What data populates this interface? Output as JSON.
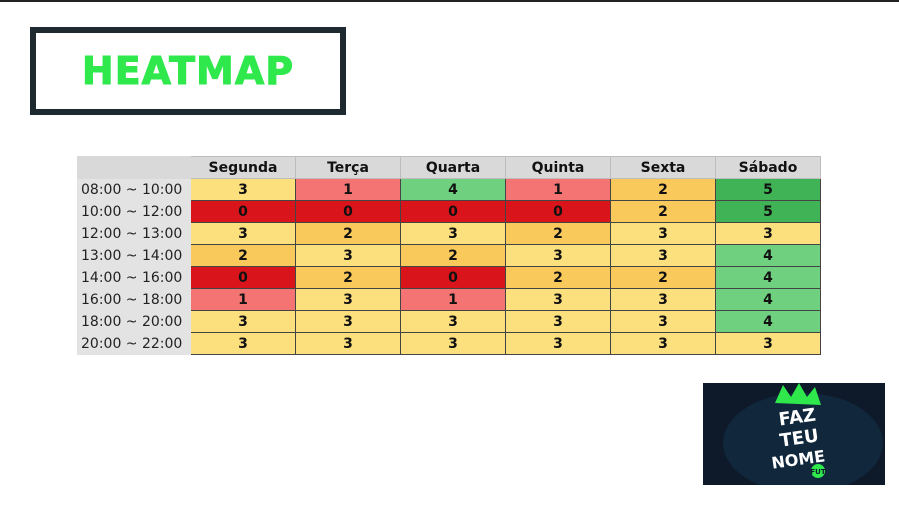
{
  "title": "HEATMAP",
  "heatmap": {
    "columns": [
      "Segunda",
      "Terça",
      "Quarta",
      "Quinta",
      "Sexta",
      "Sábado"
    ],
    "rows": [
      {
        "time": "08:00 ~ 10:00",
        "values": [
          "3",
          "1",
          "4",
          "1",
          "2",
          "5"
        ]
      },
      {
        "time": "10:00 ~ 12:00",
        "values": [
          "0",
          "0",
          "0",
          "0",
          "2",
          "5"
        ]
      },
      {
        "time": "12:00 ~ 13:00",
        "values": [
          "3",
          "2",
          "3",
          "2",
          "3",
          "3"
        ]
      },
      {
        "time": "13:00 ~ 14:00",
        "values": [
          "2",
          "3",
          "2",
          "3",
          "3",
          "4"
        ]
      },
      {
        "time": "14:00 ~ 16:00",
        "values": [
          "0",
          "2",
          "0",
          "2",
          "2",
          "4"
        ]
      },
      {
        "time": "16:00 ~ 18:00",
        "values": [
          "1",
          "3",
          "1",
          "3",
          "3",
          "4"
        ]
      },
      {
        "time": "18:00 ~ 20:00",
        "values": [
          "3",
          "3",
          "3",
          "3",
          "3",
          "4"
        ]
      },
      {
        "time": "20:00 ~ 22:00",
        "values": [
          "3",
          "3",
          "3",
          "3",
          "3",
          "3"
        ]
      }
    ],
    "colors": {
      "0": "#d9141a",
      "1": "#f47474",
      "2": "#f9c95c",
      "3": "#fde07e",
      "4": "#6fd17f",
      "5": "#3fb356"
    }
  },
  "logo": {
    "lines": [
      "FAZ",
      "TEU",
      "NOME"
    ],
    "badge": "FUT",
    "colors": {
      "background": "#0e1a2a",
      "crown": "#2ee84c",
      "text": "#ffffff"
    }
  }
}
